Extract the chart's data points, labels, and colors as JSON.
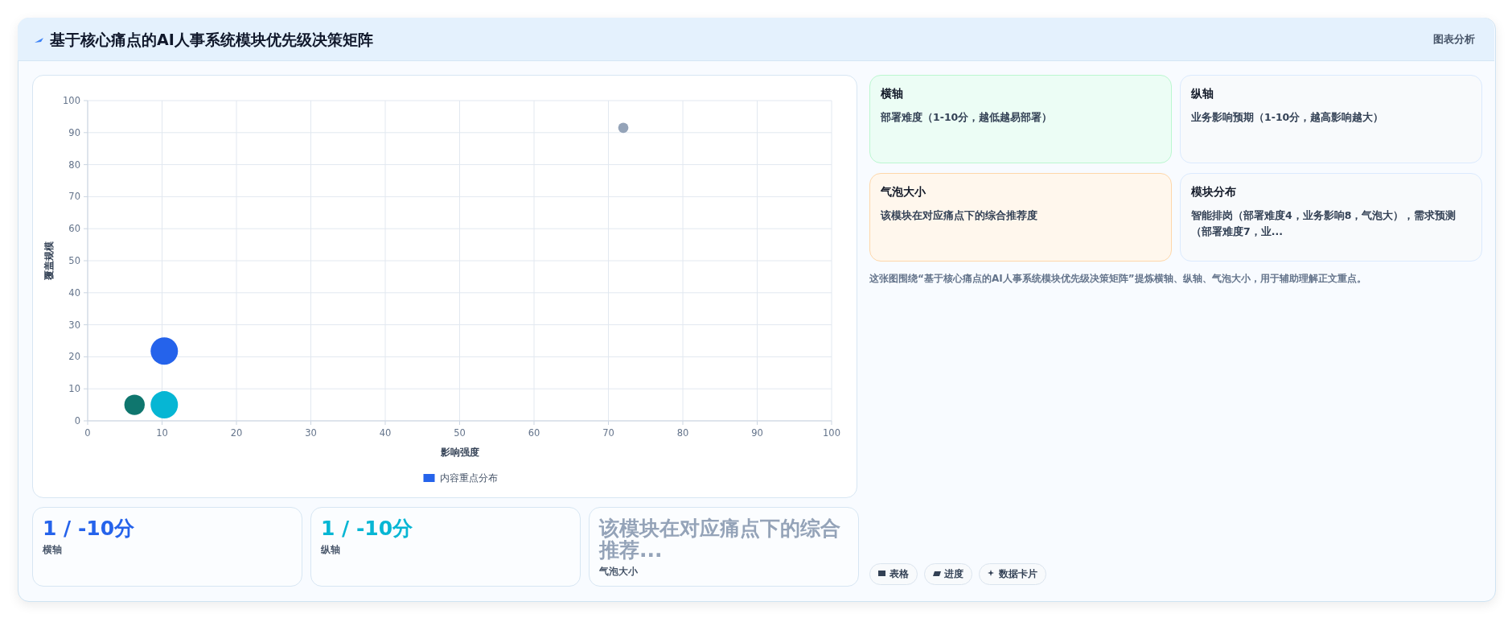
{
  "chart_data": [
    {
      "type": "bubble",
      "title": "基于核心痛点的AI人事系统模块优先级决策矩阵",
      "annotations": [
        "图表分析"
      ],
      "xlabel": "影响强度",
      "ylabel": "覆盖规模",
      "x": [
        72,
        10.3,
        6.3,
        10.3
      ],
      "series": [
        {
          "name": "内容重点分布",
          "color": "#2563eb",
          "colors": [
            "#94a3b8",
            "#2563eb",
            "#0f766e",
            "#06b6d4"
          ],
          "values": [
            91.5,
            21.8,
            5,
            5
          ],
          "sizes": [
            0.14,
            1,
            0.56,
            1
          ]
        }
      ],
      "xlim": [
        0,
        100
      ],
      "ylim": [
        0,
        100
      ],
      "xticks": [
        0,
        10,
        20,
        30,
        40,
        50,
        60,
        70,
        80,
        90,
        100
      ],
      "yticks": [
        0,
        10,
        20,
        30,
        40,
        50,
        60,
        70,
        80,
        90,
        100
      ],
      "grid": true,
      "legend": "bottom"
    },
    {
      "type": "other",
      "annotations": [
        "横轴",
        "部署难度（1-10分，越低越易部署）",
        "纵轴",
        "业务影响预期（1-10分，越高影响越大）",
        "气泡大小",
        "该模块在对应痛点下的综合推荐度",
        "模块分布",
        "智能排岗（部署难度4，业务影响8，气泡大），需求预测（部署难度7，业...",
        "这张图围绕“基于核心痛点的AI人事系统模块优先级决策矩阵”提炼横轴、纵轴、气泡大小，用于辅助理解正文重点。",
        "表格",
        "进度",
        "数据卡片"
      ]
    },
    {
      "type": "other",
      "annotations": [
        "1 / -10分",
        "横轴",
        "1 / -10分",
        "纵轴",
        "该模块在对应痛点下的综合推荐...",
        "气泡大小"
      ]
    }
  ]
}
